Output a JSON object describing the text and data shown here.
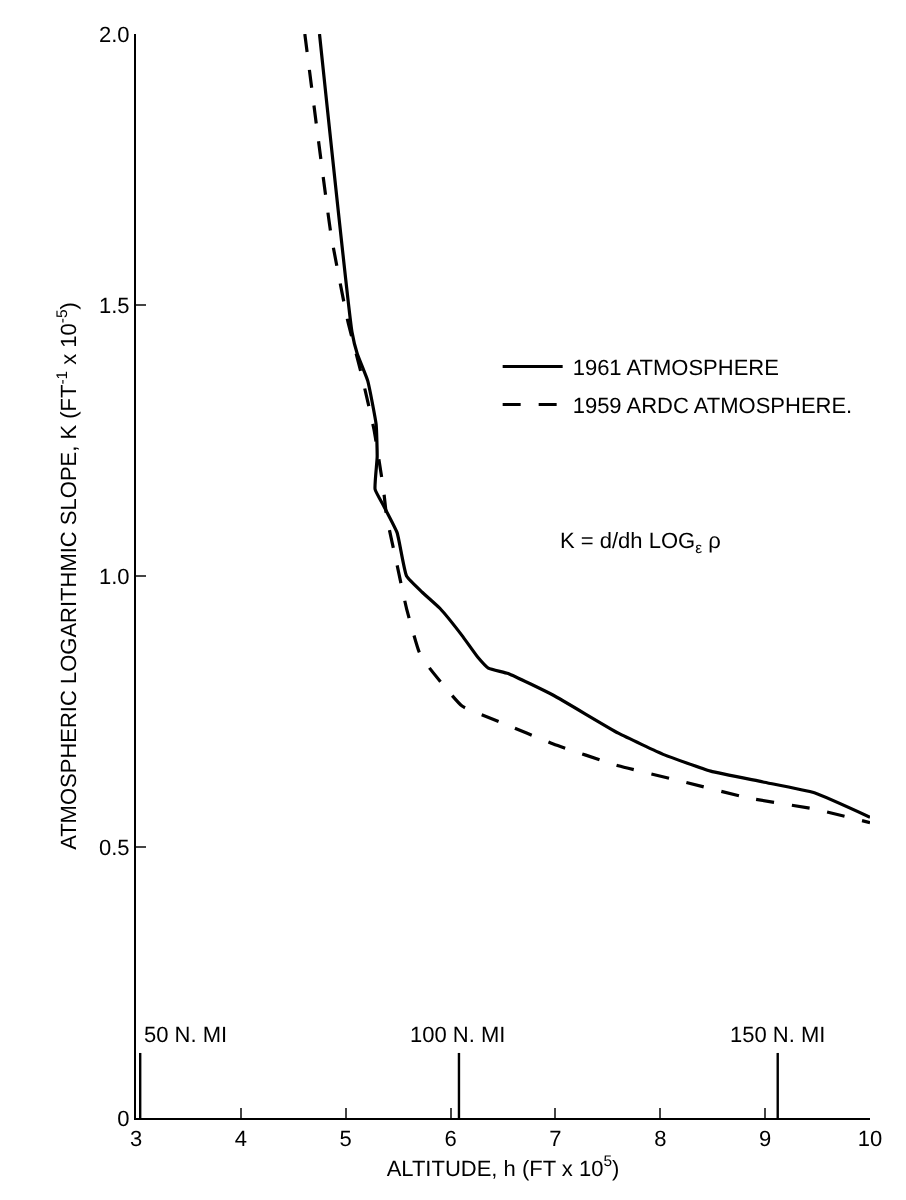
{
  "chart_data": {
    "type": "line",
    "xlabel": "ALTITUDE, h (FT x 10$^{5}$)",
    "ylabel": "ATMOSPHERIC LOGARITHMIC SLOPE, K (FT$^{-1}$ x 10$^{-5}$)",
    "xlim": [
      3,
      10
    ],
    "ylim": [
      0,
      2
    ],
    "xticks": [
      3,
      4,
      5,
      6,
      7,
      8,
      9,
      10
    ],
    "yticks": [
      0,
      0.5,
      {
        "value": 1,
        "label": "1.0"
      },
      1.5,
      {
        "value": 2,
        "label": "2.0"
      }
    ],
    "grid": false,
    "legend": "top right",
    "marker": "none",
    "series": [
      {
        "name": "1961 ATMOSPHERE",
        "color": "#000000",
        "line_style": "solid",
        "x": [
          4.75,
          5.06,
          5.11,
          5.21,
          5.29,
          5.3,
          5.28,
          5.36,
          5.49,
          5.58,
          5.73,
          5.9,
          6.11,
          6.26,
          6.36,
          6.55,
          6.98,
          7.6,
          8.04,
          8.48,
          8.98,
          9.47,
          10
        ],
        "values": [
          2.0,
          1.45,
          1.41,
          1.36,
          1.28,
          1.22,
          1.16,
          1.13,
          1.08,
          1.0,
          0.97,
          0.94,
          0.89,
          0.85,
          0.83,
          0.82,
          0.78,
          0.71,
          0.67,
          0.64,
          0.62,
          0.6,
          0.555
        ]
      },
      {
        "name": "1959 ARDC ATMOSPHERE.",
        "color": "#000000",
        "line_style": "dashed",
        "x": [
          4.61,
          4.86,
          5.02,
          5.14,
          5.27,
          5.36,
          5.39,
          5.49,
          5.58,
          5.7,
          5.8,
          6.11,
          6.48,
          6.98,
          7.6,
          8.23,
          8.85,
          9.47,
          10
        ],
        "values": [
          2.0,
          1.63,
          1.47,
          1.38,
          1.27,
          1.16,
          1.11,
          1.02,
          0.94,
          0.86,
          0.83,
          0.76,
          0.73,
          0.69,
          0.65,
          0.62,
          0.59,
          0.57,
          0.545
        ]
      }
    ],
    "ref_lines": [
      {
        "axis": "x",
        "value": 3.04,
        "label": "50 N. MI"
      },
      {
        "axis": "x",
        "value": 6.08,
        "label": "100 N. MI"
      },
      {
        "axis": "x",
        "value": 9.12,
        "label": "150 N. MI"
      }
    ],
    "annotations": [
      "K = d/dh LOG$_{ε}$ ρ"
    ]
  }
}
